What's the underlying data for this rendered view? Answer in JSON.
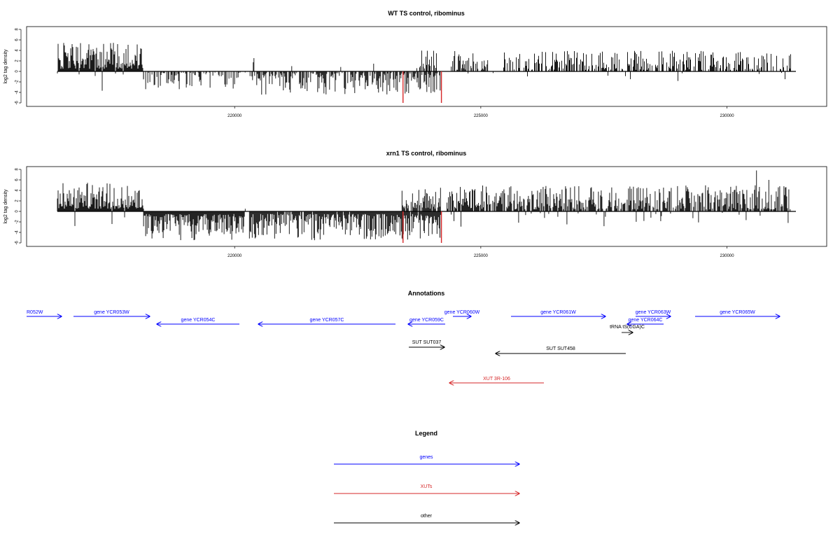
{
  "chart_data": [
    {
      "type": "bar",
      "title": "WT TS control, ribominus",
      "xlabel": "",
      "ylabel": "log2 tag density",
      "xlim": [
        216400,
        231400
      ],
      "ylim": [
        -6,
        8
      ],
      "y_ticks": [
        "-6",
        "-4",
        "-2",
        "0",
        "2",
        "4",
        "6",
        "8"
      ],
      "x_ticks": [
        {
          "value": 220000,
          "label": "220000"
        },
        {
          "value": 225000,
          "label": "225000"
        },
        {
          "value": 230000,
          "label": "230000"
        }
      ],
      "series_color": "#000000",
      "highlight_color": "#d62728",
      "segments": [
        {
          "start": 216400,
          "end": 218150,
          "sign": 1,
          "min": 0.5,
          "max": 5.5,
          "density": 1.0,
          "neg_sparse": 0.05
        },
        {
          "start": 218150,
          "end": 220000,
          "sign": -1,
          "min": 0.2,
          "max": 3.5,
          "density": 0.45,
          "neg_sparse": 0
        },
        {
          "start": 220000,
          "end": 220350,
          "sign": -1,
          "min": 0.2,
          "max": 1.5,
          "density": 0.15,
          "neg_sparse": 0
        },
        {
          "start": 220350,
          "end": 224200,
          "sign": -1,
          "min": 0.3,
          "max": 4.5,
          "density": 0.7,
          "neg_sparse": 0.03
        },
        {
          "start": 223700,
          "end": 224200,
          "sign": 1,
          "min": 0.5,
          "max": 4.0,
          "density": 0.4,
          "neg_sparse": 0
        },
        {
          "start": 224400,
          "end": 225150,
          "sign": 1,
          "min": 0.3,
          "max": 4.0,
          "density": 0.55,
          "neg_sparse": 0.08
        },
        {
          "start": 225150,
          "end": 225450,
          "sign": -1,
          "min": 0.3,
          "max": 1.5,
          "density": 0.1,
          "neg_sparse": 0
        },
        {
          "start": 225450,
          "end": 231300,
          "sign": 1,
          "min": 0.3,
          "max": 4.0,
          "density": 0.55,
          "neg_sparse": 0.03
        }
      ],
      "highlights": [
        {
          "x": 223420,
          "y": -6
        },
        {
          "x": 224200,
          "y": -6
        }
      ]
    },
    {
      "type": "bar",
      "title": "xrn1 TS control, ribominus",
      "xlabel": "",
      "ylabel": "log2 tag density",
      "xlim": [
        216400,
        231400
      ],
      "ylim": [
        -6,
        8
      ],
      "y_ticks": [
        "-6",
        "-4",
        "-2",
        "0",
        "2",
        "4",
        "6",
        "8"
      ],
      "x_ticks": [
        {
          "value": 220000,
          "label": "220000"
        },
        {
          "value": 225000,
          "label": "225000"
        },
        {
          "value": 230000,
          "label": "230000"
        }
      ],
      "series_color": "#000000",
      "highlight_color": "#d62728",
      "segments": [
        {
          "start": 216400,
          "end": 218150,
          "sign": 1,
          "min": 0.5,
          "max": 5.5,
          "density": 1.0,
          "neg_sparse": 0.03
        },
        {
          "start": 218150,
          "end": 220200,
          "sign": -1,
          "min": 0.5,
          "max": 5.5,
          "density": 1.0,
          "neg_sparse": 0
        },
        {
          "start": 220200,
          "end": 220300,
          "sign": 1,
          "min": 0.5,
          "max": 2.0,
          "density": 0.1,
          "neg_sparse": 0
        },
        {
          "start": 220300,
          "end": 224200,
          "sign": -1,
          "min": 0.5,
          "max": 5.5,
          "density": 0.95,
          "neg_sparse": 0
        },
        {
          "start": 223400,
          "end": 224200,
          "sign": 1,
          "min": 0.5,
          "max": 4.5,
          "density": 0.8,
          "neg_sparse": 0
        },
        {
          "start": 224300,
          "end": 225200,
          "sign": 1,
          "min": 0.5,
          "max": 5.0,
          "density": 0.9,
          "neg_sparse": 0.06
        },
        {
          "start": 225200,
          "end": 231300,
          "sign": 1,
          "min": 0.4,
          "max": 5.0,
          "density": 0.8,
          "neg_sparse": 0.06
        }
      ],
      "highlights": [
        {
          "x": 223420,
          "y": -6
        },
        {
          "x": 224200,
          "y": -6
        }
      ],
      "peaks": [
        {
          "x": 230600,
          "y": 7.8
        },
        {
          "x": 230850,
          "y": 6.0
        }
      ]
    }
  ],
  "annotations": {
    "title": "Annotations",
    "features": [
      {
        "label": "R052W",
        "color": "#0000ff",
        "start": 0,
        "end": 50,
        "dir": "right",
        "row": 0,
        "label_anchor": "start"
      },
      {
        "label": "gene YCR053W",
        "color": "#0000ff",
        "start": 67,
        "end": 176,
        "dir": "right",
        "row": 0
      },
      {
        "label": "gene YCR054C",
        "color": "#0000ff",
        "start": 186,
        "end": 304,
        "dir": "left",
        "row": 1
      },
      {
        "label": "gene YCR057C",
        "color": "#0000ff",
        "start": 331,
        "end": 527,
        "dir": "left",
        "row": 1
      },
      {
        "label": "gene YCR059C",
        "color": "#0000ff",
        "start": 545,
        "end": 598,
        "dir": "left",
        "row": 1
      },
      {
        "label": "gene YCR060W",
        "color": "#0000ff",
        "start": 609,
        "end": 635,
        "dir": "right",
        "row": 0
      },
      {
        "label": "gene YCR061W",
        "color": "#0000ff",
        "start": 692,
        "end": 827,
        "dir": "right",
        "row": 0
      },
      {
        "label": "gene YCR063W",
        "color": "#0000ff",
        "start": 870,
        "end": 920,
        "dir": "right",
        "row": 0
      },
      {
        "label": "gene YCR064C",
        "color": "#0000ff",
        "start": 858,
        "end": 910,
        "dir": "left",
        "row": 1
      },
      {
        "label": "gene YCR065W",
        "color": "#0000ff",
        "start": 955,
        "end": 1076,
        "dir": "right",
        "row": 0
      },
      {
        "label": "tRNA tS(CGA)C",
        "color": "#000000",
        "start": 850,
        "end": 866,
        "dir": "right",
        "row": 2
      },
      {
        "label": "SUT SUT037",
        "color": "#000000",
        "start": 546,
        "end": 597,
        "dir": "right",
        "row": 3
      },
      {
        "label": "SUT SUT458",
        "color": "#000000",
        "start": 670,
        "end": 856,
        "dir": "left",
        "row": 4
      },
      {
        "label": "XUT 3R-106",
        "color": "#d62728",
        "start": 604,
        "end": 739,
        "dir": "left",
        "row": 5
      }
    ]
  },
  "legend": {
    "title": "Legend",
    "items": [
      {
        "label": "genes",
        "color": "#0000ff"
      },
      {
        "label": "XUTs",
        "color": "#d62728"
      },
      {
        "label": "other",
        "color": "#000000"
      }
    ]
  }
}
